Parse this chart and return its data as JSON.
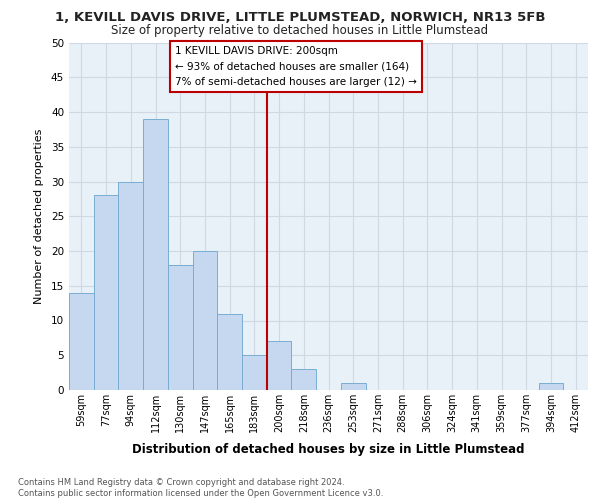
{
  "title": "1, KEVILL DAVIS DRIVE, LITTLE PLUMSTEAD, NORWICH, NR13 5FB",
  "subtitle": "Size of property relative to detached houses in Little Plumstead",
  "xlabel": "Distribution of detached houses by size in Little Plumstead",
  "ylabel": "Number of detached properties",
  "bar_labels": [
    "59sqm",
    "77sqm",
    "94sqm",
    "112sqm",
    "130sqm",
    "147sqm",
    "165sqm",
    "183sqm",
    "200sqm",
    "218sqm",
    "236sqm",
    "253sqm",
    "271sqm",
    "288sqm",
    "306sqm",
    "324sqm",
    "341sqm",
    "359sqm",
    "377sqm",
    "394sqm",
    "412sqm"
  ],
  "bar_values": [
    14,
    28,
    30,
    39,
    18,
    20,
    11,
    5,
    7,
    3,
    0,
    1,
    0,
    0,
    0,
    0,
    0,
    0,
    0,
    1,
    0
  ],
  "bar_color": "#c5d8ef",
  "bar_edge_color": "#7aadd4",
  "grid_color": "#d0d8e4",
  "bg_color": "#e8f0f8",
  "vline_x_index": 8,
  "vline_color": "#bb0000",
  "annotation_text": "1 KEVILL DAVIS DRIVE: 200sqm\n← 93% of detached houses are smaller (164)\n7% of semi-detached houses are larger (12) →",
  "annotation_box_color": "#bb0000",
  "ylim": [
    0,
    50
  ],
  "yticks": [
    0,
    5,
    10,
    15,
    20,
    25,
    30,
    35,
    40,
    45,
    50
  ],
  "footer_line1": "Contains HM Land Registry data © Crown copyright and database right 2024.",
  "footer_line2": "Contains public sector information licensed under the Open Government Licence v3.0."
}
